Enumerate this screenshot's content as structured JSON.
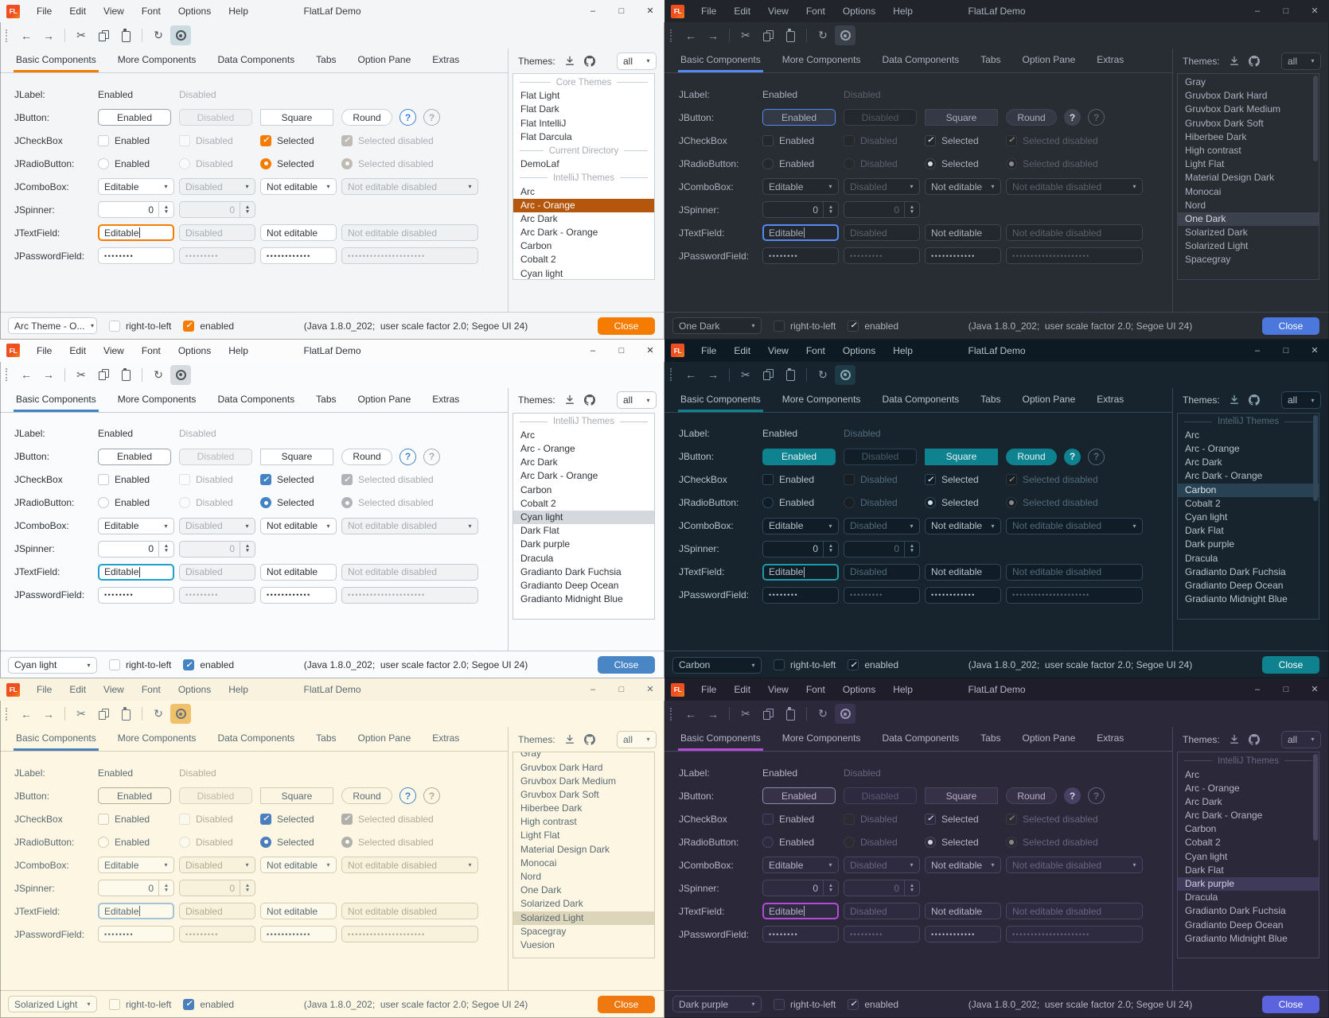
{
  "common": {
    "logo_text": "FL",
    "title": "FlatLaf Demo",
    "menus": [
      "File",
      "Edit",
      "View",
      "Font",
      "Options",
      "Help"
    ],
    "window_controls": {
      "minimize": "–",
      "maximize": "□",
      "close": "✕"
    },
    "toolbar": {
      "back": "←",
      "forward": "→",
      "cut": "✂",
      "refresh": "↻"
    },
    "tabs": [
      "Basic Components",
      "More Components",
      "Data Components",
      "Tabs",
      "Option Pane",
      "Extras"
    ],
    "themes_panel": {
      "label": "Themes:",
      "filter_value": "all"
    },
    "bottom": {
      "rtl": "right-to-left",
      "enabled": "enabled",
      "close": "Close"
    },
    "status": "(Java 1.8.0_202;  user scale factor 2.0; Segoe UI 24)",
    "glyphs": {
      "check": "✓",
      "combo_arrow": "▾",
      "spin_up": "▲",
      "spin_down": "▼"
    }
  },
  "components": {
    "jlabel": {
      "name": "JLabel:",
      "enabled": "Enabled",
      "disabled": "Disabled"
    },
    "jbutton": {
      "name": "JButton:",
      "enabled": "Enabled",
      "disabled": "Disabled",
      "square": "Square",
      "round": "Round",
      "help": "?"
    },
    "jcheckbox": {
      "name": "JCheckBox",
      "enabled": "Enabled",
      "disabled": "Disabled",
      "selected": "Selected",
      "selected_disabled": "Selected disabled"
    },
    "jradiobutton": {
      "name": "JRadioButton:",
      "enabled": "Enabled",
      "disabled": "Disabled",
      "selected": "Selected",
      "selected_disabled": "Selected disabled"
    },
    "jcombobox": {
      "name": "JComboBox:",
      "editable": "Editable",
      "disabled": "Disabled",
      "not_editable": "Not editable",
      "not_editable_disabled": "Not editable disabled"
    },
    "jspinner": {
      "name": "JSpinner:",
      "value": "0"
    },
    "jtextfield": {
      "name": "JTextField:",
      "editable": "Editable",
      "disabled": "Disabled",
      "not_editable": "Not editable",
      "not_editable_disabled": "Not editable disabled"
    },
    "jpasswordfield": {
      "name": "JPasswordField:",
      "p1": "••••••••",
      "p2": "•••••••••",
      "p3": "••••••••••••",
      "p4": "•••••••••••••••••••••"
    }
  },
  "windows": [
    {
      "id": "arc-orange",
      "theme_name": "Arc - Orange",
      "mode": "light",
      "combo_value": "Arc Theme - O...",
      "scrollbar": false,
      "scrolled_list": false,
      "filled_buttons": false,
      "colors": {
        "bg": "#f4f5f6",
        "titlebar": "#f4f5f6",
        "text": "#35393d",
        "muted": "#a9aeb4",
        "icon": "#4b5359",
        "field": "#ffffff",
        "dfield": "#eff0f2",
        "btn": "#ffffff",
        "border": "#c9d0d6",
        "defb": "#9aa3ab",
        "accent": "#f57c00",
        "focus": "#f57c00",
        "check": "#f57c00",
        "close": "#f57c00",
        "tab_line": "#f57c00",
        "sel_bg": "#b5560d",
        "sel_text": "#ffffff",
        "toggle": "#ccdbe1",
        "help_bg": "#ffffff",
        "help_fg": "#3a7edb",
        "list_bg": "#ffffff"
      },
      "list": [
        {
          "sep": true,
          "label": "Core Themes"
        },
        {
          "label": "Flat Light"
        },
        {
          "label": "Flat Dark"
        },
        {
          "label": "Flat IntelliJ"
        },
        {
          "label": "Flat Darcula"
        },
        {
          "sep": true,
          "label": "Current Directory"
        },
        {
          "label": "DemoLaf"
        },
        {
          "sep": true,
          "label": "IntelliJ Themes"
        },
        {
          "label": "Arc"
        },
        {
          "label": "Arc - Orange",
          "selected": true
        },
        {
          "label": "Arc Dark"
        },
        {
          "label": "Arc Dark - Orange"
        },
        {
          "label": "Carbon"
        },
        {
          "label": "Cobalt 2"
        },
        {
          "label": "Cyan light"
        }
      ]
    },
    {
      "id": "one-dark",
      "theme_name": "One Dark",
      "mode": "dark",
      "combo_value": "One Dark",
      "scrollbar": true,
      "scrolled_list": false,
      "filled_buttons": false,
      "colors": {
        "bg": "#282c33",
        "titlebar": "#21252b",
        "text": "#a9b1bd",
        "muted": "#5a616d",
        "icon": "#9aa3b0",
        "field": "#23272e",
        "dfield": "#23272e",
        "btn": "#333945",
        "border": "#3f4551",
        "defb": "#568af2",
        "accent": "#568af2",
        "focus": "#568af2",
        "check": "#d7dae0",
        "close": "#4c78dd",
        "tab_line": "#568af2",
        "sel_bg": "#3b414d",
        "sel_text": "#d7dae0",
        "toggle": "#3a414b",
        "help_bg": "#3d4450",
        "help_fg": "#d7dae0",
        "list_bg": "#282c33"
      },
      "list": [
        {
          "label": "Gray"
        },
        {
          "label": "Gruvbox Dark Hard"
        },
        {
          "label": "Gruvbox Dark Medium"
        },
        {
          "label": "Gruvbox Dark Soft"
        },
        {
          "label": "Hiberbee Dark"
        },
        {
          "label": "High contrast"
        },
        {
          "label": "Light Flat"
        },
        {
          "label": "Material Design Dark"
        },
        {
          "label": "Monocai"
        },
        {
          "label": "Nord"
        },
        {
          "label": "One Dark",
          "selected": true
        },
        {
          "label": "Solarized Dark"
        },
        {
          "label": "Solarized Light"
        },
        {
          "label": "Spacegray"
        }
      ]
    },
    {
      "id": "cyan-light",
      "theme_name": "Cyan light",
      "mode": "light",
      "combo_value": "Cyan light",
      "scrollbar": false,
      "scrolled_list": false,
      "filled_buttons": false,
      "colors": {
        "bg": "#fafbfc",
        "titlebar": "#fcfcfd",
        "text": "#2e3338",
        "muted": "#a7abb0",
        "icon": "#4f555b",
        "field": "#ffffff",
        "dfield": "#f1f2f4",
        "btn": "#ffffff",
        "border": "#c5cad0",
        "defb": "#9aa3ab",
        "accent": "#4383c4",
        "focus": "#1ea2c9",
        "check": "#4383c4",
        "close": "#4886c5",
        "tab_line": "#4383c4",
        "sel_bg": "#d5d8dc",
        "sel_text": "#2e3338",
        "toggle": "#d8dbde",
        "help_bg": "#ffffff",
        "help_fg": "#3f82c6",
        "list_bg": "#ffffff"
      },
      "list": [
        {
          "sep": true,
          "label": "IntelliJ Themes"
        },
        {
          "label": "Arc"
        },
        {
          "label": "Arc - Orange"
        },
        {
          "label": "Arc Dark"
        },
        {
          "label": "Arc Dark - Orange"
        },
        {
          "label": "Carbon"
        },
        {
          "label": "Cobalt 2"
        },
        {
          "label": "Cyan light",
          "selected": true
        },
        {
          "label": "Dark Flat"
        },
        {
          "label": "Dark purple"
        },
        {
          "label": "Dracula"
        },
        {
          "label": "Gradianto Dark Fuchsia"
        },
        {
          "label": "Gradianto Deep Ocean"
        },
        {
          "label": "Gradianto Midnight Blue"
        }
      ]
    },
    {
      "id": "carbon",
      "theme_name": "Carbon",
      "mode": "dark",
      "combo_value": "Carbon",
      "scrollbar": true,
      "scrolled_list": false,
      "filled_buttons": true,
      "colors": {
        "bg": "#17242e",
        "titlebar": "#0d1a24",
        "text": "#b4c3cb",
        "muted": "#536b79",
        "icon": "#8ba4b1",
        "field": "#101d27",
        "dfield": "#101d27",
        "btn": "#1c313e",
        "border": "#30485a",
        "defb": "#0e828e",
        "accent": "#0e828e",
        "focus": "#1b9aa8",
        "check": "#cfe0e5",
        "close": "#0e828e",
        "tab_line": "#0e828e",
        "sel_bg": "#294253",
        "sel_text": "#d6e4ea",
        "toggle": "#1e3a47",
        "help_bg": "#0e828e",
        "help_fg": "#e6f2f4",
        "list_bg": "#17242e"
      },
      "list": [
        {
          "sep": true,
          "label": "IntelliJ Themes"
        },
        {
          "label": "Arc"
        },
        {
          "label": "Arc - Orange"
        },
        {
          "label": "Arc Dark"
        },
        {
          "label": "Arc Dark - Orange"
        },
        {
          "label": "Carbon",
          "selected": true
        },
        {
          "label": "Cobalt 2"
        },
        {
          "label": "Cyan light"
        },
        {
          "label": "Dark Flat"
        },
        {
          "label": "Dark purple"
        },
        {
          "label": "Dracula"
        },
        {
          "label": "Gradianto Dark Fuchsia"
        },
        {
          "label": "Gradianto Deep Ocean"
        },
        {
          "label": "Gradianto Midnight Blue"
        }
      ]
    },
    {
      "id": "solarized-light",
      "theme_name": "Solarized Light",
      "mode": "light",
      "combo_value": "Solarized Light",
      "scrollbar": false,
      "scrolled_list": true,
      "filled_buttons": false,
      "colors": {
        "bg": "#fdf6e3",
        "titlebar": "#f9f2de",
        "text": "#596a72",
        "muted": "#b1ab94",
        "icon": "#68737c",
        "field": "#fefaeb",
        "dfield": "#f8f1dc",
        "btn": "#fcf5e2",
        "border": "#d3ccb2",
        "defb": "#b5ad8e",
        "accent": "#4a7ebc",
        "focus": "#a5c4d6",
        "check": "#4a7ebc",
        "close": "#ef790e",
        "tab_line": "#4a7ebc",
        "sel_bg": "#ddd5b9",
        "sel_text": "#596a72",
        "toggle": "#f0c06a",
        "help_bg": "#fefaeb",
        "help_fg": "#4182c4",
        "list_bg": "#fdf6e3"
      },
      "list": [
        {
          "label": "Gray"
        },
        {
          "label": "Gruvbox Dark Hard"
        },
        {
          "label": "Gruvbox Dark Medium"
        },
        {
          "label": "Gruvbox Dark Soft"
        },
        {
          "label": "Hiberbee Dark"
        },
        {
          "label": "High contrast"
        },
        {
          "label": "Light Flat"
        },
        {
          "label": "Material Design Dark"
        },
        {
          "label": "Monocai"
        },
        {
          "label": "Nord"
        },
        {
          "label": "One Dark"
        },
        {
          "label": "Solarized Dark"
        },
        {
          "label": "Solarized Light",
          "selected": true
        },
        {
          "label": "Spacegray"
        },
        {
          "label": "Vuesion"
        }
      ]
    },
    {
      "id": "dark-purple",
      "theme_name": "Dark purple",
      "mode": "dark",
      "combo_value": "Dark purple",
      "scrollbar": true,
      "scrolled_list": false,
      "filled_buttons": false,
      "colors": {
        "bg": "#2b2839",
        "titlebar": "#201d2b",
        "text": "#b7b4c8",
        "muted": "#69657f",
        "icon": "#9c97b4",
        "field": "#2e2a40",
        "dfield": "#2e2a40",
        "btn": "#363147",
        "border": "#4a4560",
        "defb": "#8f8aad",
        "accent": "#b44bd9",
        "focus": "#b44bd9",
        "check": "#d5d3e0",
        "close": "#5c63de",
        "tab_line": "#b44bd9",
        "sel_bg": "#403a5a",
        "sel_text": "#d5d3e0",
        "toggle": "#3a3451",
        "help_bg": "#494163",
        "help_fg": "#d5d3e0",
        "list_bg": "#2b2839"
      },
      "list": [
        {
          "sep": true,
          "label": "IntelliJ Themes"
        },
        {
          "label": "Arc"
        },
        {
          "label": "Arc - Orange"
        },
        {
          "label": "Arc Dark"
        },
        {
          "label": "Arc Dark - Orange"
        },
        {
          "label": "Carbon"
        },
        {
          "label": "Cobalt 2"
        },
        {
          "label": "Cyan light"
        },
        {
          "label": "Dark Flat"
        },
        {
          "label": "Dark purple",
          "selected": true
        },
        {
          "label": "Dracula"
        },
        {
          "label": "Gradianto Dark Fuchsia"
        },
        {
          "label": "Gradianto Deep Ocean"
        },
        {
          "label": "Gradianto Midnight Blue"
        }
      ]
    }
  ]
}
